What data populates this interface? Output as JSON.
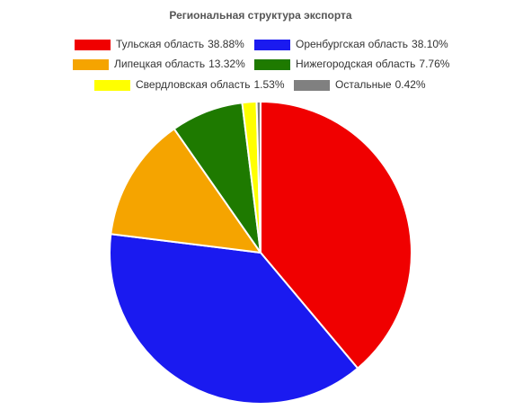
{
  "chart_data": {
    "type": "pie",
    "title": "Региональная структура экспорта",
    "categories": [
      "Тульская область",
      "Оренбургская область",
      "Липецкая область",
      "Нижегородская область",
      "Свердловская область",
      "Остальные"
    ],
    "values": [
      38.88,
      38.1,
      13.32,
      7.76,
      1.53,
      0.42
    ],
    "value_labels": [
      "38.88%",
      "38.10%",
      "13.32%",
      "7.76%",
      "1.53%",
      "0.42%"
    ],
    "colors": [
      "#f00000",
      "#1a1af0",
      "#f5a400",
      "#1e7a00",
      "#ffff00",
      "#808080"
    ]
  }
}
